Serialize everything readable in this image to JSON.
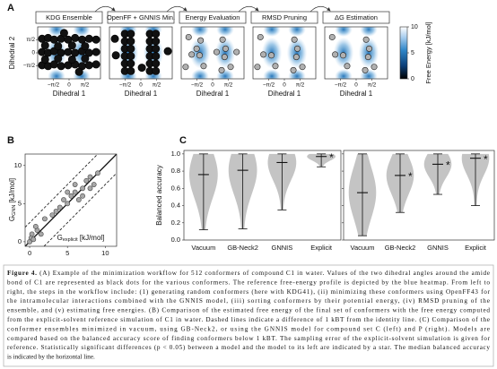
{
  "panel_a": {
    "label": "A",
    "subplots": [
      {
        "title": "KDG Ensemble",
        "point_fill": "#111111",
        "point_stroke": "#000000",
        "point_radius": 4.2,
        "points": [
          [
            -2.7,
            1.7
          ],
          [
            -2.1,
            1.8
          ],
          [
            -1.5,
            1.6
          ],
          [
            -0.8,
            1.7
          ],
          [
            -0.1,
            1.6
          ],
          [
            0.6,
            1.8
          ],
          [
            1.3,
            1.6
          ],
          [
            2.0,
            1.7
          ],
          [
            2.7,
            1.6
          ],
          [
            -2.7,
            0.1
          ],
          [
            -2.1,
            0.0
          ],
          [
            -1.5,
            0.2
          ],
          [
            -0.8,
            0.0
          ],
          [
            -0.1,
            0.1
          ],
          [
            0.6,
            0.0
          ],
          [
            1.3,
            0.2
          ],
          [
            2.0,
            0.0
          ],
          [
            2.7,
            0.1
          ],
          [
            -2.7,
            -1.5
          ],
          [
            -2.1,
            -1.6
          ],
          [
            -1.5,
            -1.4
          ],
          [
            -0.8,
            -1.6
          ],
          [
            -0.1,
            -1.5
          ],
          [
            0.6,
            -1.4
          ],
          [
            1.3,
            -1.6
          ],
          [
            2.0,
            -1.5
          ],
          [
            2.7,
            -1.4
          ],
          [
            -2.4,
            0.9
          ],
          [
            -1.1,
            0.8
          ],
          [
            0.3,
            0.9
          ],
          [
            1.6,
            0.8
          ],
          [
            -2.4,
            -0.8
          ],
          [
            -1.1,
            -0.7
          ],
          [
            0.3,
            -0.8
          ],
          [
            1.6,
            -0.7
          ],
          [
            -0.5,
            2.4
          ],
          [
            1.0,
            -2.3
          ]
        ]
      },
      {
        "title": "OpenFF + GNNIS Min.",
        "point_fill": "#111111",
        "point_stroke": "#000000",
        "point_radius": 4.2,
        "points": [
          [
            -1.6,
            -2.2
          ],
          [
            -1.6,
            -1.3
          ],
          [
            -1.6,
            -0.4
          ],
          [
            -1.6,
            0.5
          ],
          [
            -1.6,
            1.4
          ],
          [
            -1.6,
            2.3
          ],
          [
            -1.0,
            -2.2
          ],
          [
            -1.0,
            -1.3
          ],
          [
            -1.0,
            -0.4
          ],
          [
            -1.0,
            0.5
          ],
          [
            -1.0,
            1.4
          ],
          [
            -1.0,
            2.3
          ],
          [
            0.9,
            -2.2
          ],
          [
            0.9,
            -1.3
          ],
          [
            0.9,
            -0.4
          ],
          [
            0.9,
            0.5
          ],
          [
            0.9,
            1.4
          ],
          [
            0.9,
            2.3
          ],
          [
            1.5,
            -2.2
          ],
          [
            1.5,
            -1.3
          ],
          [
            1.5,
            -0.4
          ],
          [
            1.5,
            0.5
          ],
          [
            1.5,
            1.4
          ],
          [
            1.5,
            2.3
          ],
          [
            -2.6,
            1.7
          ],
          [
            2.7,
            0.2
          ],
          [
            0.1,
            -1.8
          ],
          [
            -2.5,
            -0.3
          ]
        ]
      },
      {
        "title": "Energy Evaluation",
        "point_fill": "#b0b0b0",
        "point_stroke": "#222222",
        "point_radius": 3.2,
        "points": [
          [
            -2.4,
            1.9
          ],
          [
            -2.1,
            -0.2
          ],
          [
            -1.2,
            1.5
          ],
          [
            -1.3,
            -0.3
          ],
          [
            -0.9,
            -1.6
          ],
          [
            0.4,
            0.1
          ],
          [
            1.0,
            1.6
          ],
          [
            1.3,
            0.5
          ],
          [
            1.2,
            -0.5
          ],
          [
            1.8,
            -1.7
          ],
          [
            2.4,
            0.1
          ],
          [
            -2.7,
            -1.7
          ],
          [
            0.9,
            -2.1
          ],
          [
            -1.6,
            0.5
          ]
        ]
      },
      {
        "title": "RMSD Pruning",
        "point_fill": "#b0b0b0",
        "point_stroke": "#222222",
        "point_radius": 3.2,
        "points": [
          [
            -2.4,
            1.9
          ],
          [
            -2.1,
            -0.2
          ],
          [
            -1.3,
            -0.3
          ],
          [
            -0.9,
            -1.6
          ],
          [
            1.0,
            1.6
          ],
          [
            1.3,
            0.5
          ],
          [
            1.2,
            -0.5
          ],
          [
            1.8,
            -1.7
          ],
          [
            -2.7,
            -1.7
          ],
          [
            0.9,
            -2.1
          ]
        ]
      },
      {
        "title": "ΔG Estimation",
        "point_fill": "#b0b0b0",
        "point_stroke": "#222222",
        "point_radius": 3.2,
        "points": [
          [
            -2.4,
            1.9
          ],
          [
            -2.1,
            -0.2
          ],
          [
            -1.3,
            -0.3
          ],
          [
            -0.9,
            -1.6
          ],
          [
            1.0,
            1.6
          ],
          [
            1.3,
            0.5
          ],
          [
            1.2,
            -0.5
          ],
          [
            1.8,
            -1.7
          ],
          [
            0.9,
            -2.1
          ]
        ]
      }
    ],
    "xlabel": "Dihedral 1",
    "ylabel": "Dihedral 2",
    "xlim": [
      -3.1416,
      3.1416
    ],
    "ylim": [
      -3.1416,
      3.1416
    ],
    "xticks": [
      {
        "value": -1.5708,
        "label": "−π/2"
      },
      0,
      {
        "value": 1.5708,
        "label": "π/2"
      }
    ],
    "yticks": [
      {
        "value": -1.5708,
        "label": "−π/2"
      },
      0,
      {
        "value": 1.5708,
        "label": "π/2"
      }
    ],
    "colorbar": {
      "title": "Free Energy [kJ/mol]",
      "lim": [
        0,
        10
      ],
      "ticks": [
        0,
        5,
        10
      ]
    }
  },
  "panel_b": {
    "label": "B",
    "ylabel": {
      "main": "G",
      "sub": "GNN",
      "unit": " [kJ/mol]"
    },
    "xlabel": {
      "main": "G",
      "sub": "explicit",
      "unit": " [kJ/mol]"
    },
    "xlim": [
      -0.6,
      11.5
    ],
    "ylim": [
      -0.6,
      11.5
    ],
    "xticks": [
      0,
      5,
      10
    ],
    "yticks": [
      0,
      5,
      10
    ],
    "dashed_offset": 2.5,
    "point_color": "#a8a8a8",
    "x": [
      0,
      0.2,
      0.3,
      0.5,
      1.0,
      0.8,
      1.5,
      2.0,
      3.0,
      3.5,
      4.0,
      5.0,
      5.5,
      6.0,
      6.5,
      7.0,
      7.5,
      8.0,
      8.5,
      9.0,
      6.0,
      5.0,
      4.5,
      7.0,
      8.0
    ],
    "y": [
      0,
      0.5,
      1.0,
      0.3,
      1.5,
      2.0,
      1.0,
      3.0,
      3.5,
      4.0,
      4.5,
      5.0,
      6.0,
      6.5,
      5.5,
      7.0,
      8.0,
      8.5,
      7.5,
      9.0,
      7.5,
      6.5,
      5.5,
      6.0,
      7.0
    ]
  },
  "panel_c": {
    "label": "C",
    "ylabel": "Balanced accuracy",
    "star": "*",
    "violin_color": "#c4c4c4",
    "ylim": [
      0,
      1.04
    ],
    "yticks": [
      {
        "value": 0,
        "label": "0.0"
      },
      0.2,
      0.4,
      0.6,
      0.8,
      {
        "value": 1,
        "label": "1.0"
      }
    ],
    "categories": [
      "Vacuum",
      "GB-Neck2",
      "GNNIS",
      "Explicit"
    ],
    "subplots": [
      {
        "min": [
          0.12,
          0.13,
          0.35,
          0.85
        ],
        "median": [
          0.76,
          0.81,
          0.9,
          0.97
        ],
        "max": [
          1.0,
          1.0,
          1.0,
          1.0
        ],
        "significant": [
          false,
          false,
          false,
          true
        ]
      },
      {
        "min": [
          0.05,
          0.32,
          0.53,
          0.4
        ],
        "median": [
          0.55,
          0.75,
          0.88,
          0.95
        ],
        "max": [
          1.0,
          1.0,
          1.0,
          1.0
        ],
        "significant": [
          false,
          true,
          true,
          true
        ]
      }
    ]
  },
  "caption": {
    "label": "Figure 4.",
    "lines": [
      " (A) Example of the minimization workflow for 512 conformers of compound C1 in water. Values of the two dihedral angles around the amide",
      "bond of C1 are represented as black dots for the various conformers. The reference free-energy profile is depicted by the blue heatmap. From left to",
      "right, the steps in the workflow include: (1) generating random conformers (here with KDG41), (ii) minimizing these conformers using OpenFF43 for",
      "the intramolecular interactions combined with the GNNIS model, (iii) sorting conformers by their potential energy, (iv) RMSD pruning of the",
      "ensemble, and (v) estimating free energies. (B) Comparison of the estimated free energy of the final set of conformers with the free energy computed",
      "from the explicit-solvent reference simulation of C1 in water. Dashed lines indicate a difference of 1 kBT from the identity line. (C) Comparison of the",
      "conformer ensembles minimized in vacuum, using GB-Neck2, or using the GNNIS model for compound set C (left) and P (right). Models are",
      "compared based on the balanced accuracy score of finding conformers below 1 kBT. The sampling error of the explicit-solvent simulation is given for",
      "reference. Statistically significant differences (p < 0.05) between a model and the model to its left are indicated by a star. The median balanced accuracy",
      "is indicated by the horizontal line."
    ]
  }
}
